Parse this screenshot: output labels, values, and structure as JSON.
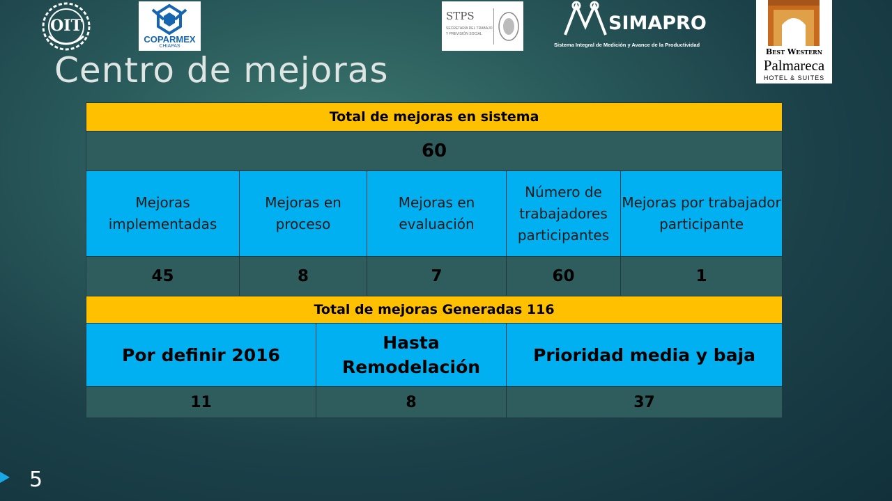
{
  "logos": {
    "oit": "OIT",
    "coparmex": "COPARMEX",
    "coparmex_sub": "CHIAPAS",
    "stps": "STPS",
    "stps_sub1": "SECRETARÍA DEL TRABAJO",
    "stps_sub2": "Y PREVISIÓN SOCIAL",
    "simapro": "SIMAPRO",
    "simapro_sub": "Sistema Integral de Medición y Avance de la Productividad",
    "bw_line1": "Best Western",
    "bw_line2": "Palmareca",
    "bw_line3": "HOTEL & SUITES"
  },
  "title": "Centro de mejoras",
  "table": {
    "header": "Total de mejoras en sistema",
    "total": "60",
    "columns": [
      {
        "label": "Mejoras implementadas",
        "value": "45"
      },
      {
        "label": "Mejoras en proceso",
        "value": "8"
      },
      {
        "label": "Mejoras en evaluación",
        "value": "7"
      },
      {
        "label": "Número de trabajadores participantes",
        "value": "60"
      },
      {
        "label": "Mejoras por trabajador participante",
        "value": "1"
      }
    ],
    "header2": "Total de mejoras Generadas 116",
    "columns2": [
      {
        "label": "Por definir 2016",
        "value": "11"
      },
      {
        "label": "Hasta Remodelación",
        "value": "8"
      },
      {
        "label": "Prioridad media y baja",
        "value": "37"
      }
    ]
  },
  "slide_number": "5",
  "colors": {
    "header_yellow": "#ffc000",
    "label_blue": "#00b0f0",
    "value_teal": "#2f5c5c"
  }
}
